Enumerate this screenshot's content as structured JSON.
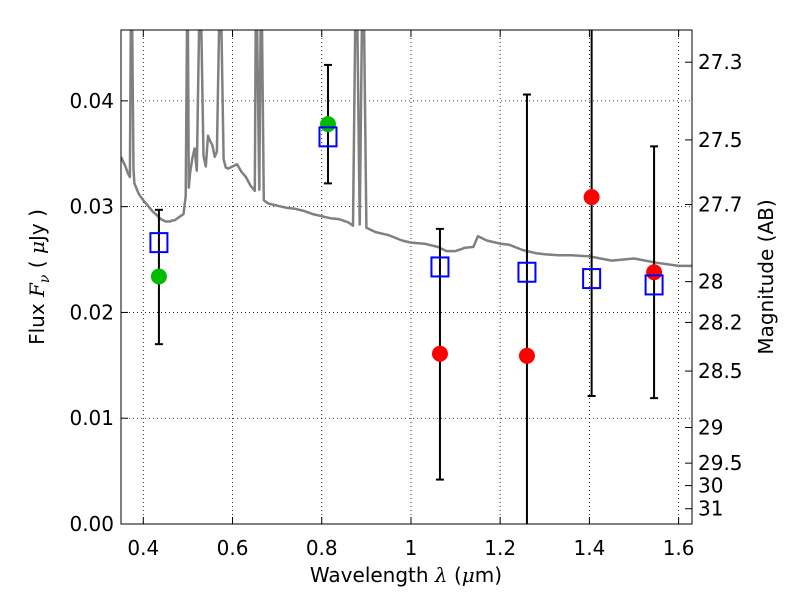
{
  "chart_data": {
    "type": "scatter",
    "xlabel": {
      "pre": "Wavelength  ",
      "symbol": "λ",
      "post": " (",
      "unit_symbol": "μ",
      "unit_post": "m)"
    },
    "ylabel": {
      "pre": "Flux  ",
      "symbol": "F",
      "sub": "ν",
      "post": "  (  ",
      "unit_symbol": "μ",
      "unit_post": "Jy )"
    },
    "y2label": "Magnitude (AB)",
    "xlim": [
      0.35,
      1.63
    ],
    "ylim": [
      0.0,
      0.0467
    ],
    "grid": true,
    "x_ticks": [
      {
        "value": 0.4,
        "label": "0.4"
      },
      {
        "value": 0.6,
        "label": "0.6"
      },
      {
        "value": 0.8,
        "label": "0.8"
      },
      {
        "value": 1.0,
        "label": "1"
      },
      {
        "value": 1.2,
        "label": "1.2"
      },
      {
        "value": 1.4,
        "label": "1.4"
      },
      {
        "value": 1.6,
        "label": "1.6"
      }
    ],
    "y_ticks": [
      {
        "value": 0.0,
        "label": "0.00"
      },
      {
        "value": 0.01,
        "label": "0.01"
      },
      {
        "value": 0.02,
        "label": "0.02"
      },
      {
        "value": 0.03,
        "label": "0.03"
      },
      {
        "value": 0.04,
        "label": "0.04"
      }
    ],
    "y2_ticks": [
      {
        "value": 27.3,
        "label": "27.3"
      },
      {
        "value": 27.5,
        "label": "27.5"
      },
      {
        "value": 27.7,
        "label": "27.7"
      },
      {
        "value": 28.0,
        "label": "28"
      },
      {
        "value": 28.2,
        "label": "28.2"
      },
      {
        "value": 28.5,
        "label": "28.5"
      },
      {
        "value": 29.0,
        "label": "29"
      },
      {
        "value": 29.5,
        "label": "29.5"
      },
      {
        "value": 30.0,
        "label": "30"
      },
      {
        "value": 31.0,
        "label": "31"
      }
    ],
    "series": [
      {
        "marker": "circle",
        "color": "#ff0000",
        "points": [
          {
            "x": 1.065,
            "y": 0.0161,
            "ylo": 0.0042,
            "yhi": 0.0279
          },
          {
            "x": 1.26,
            "y": 0.0159,
            "ylo": -0.01,
            "yhi": 0.0406
          },
          {
            "x": 1.405,
            "y": 0.0309,
            "ylo": 0.0121,
            "yhi": 0.047
          },
          {
            "x": 1.545,
            "y": 0.0238,
            "ylo": 0.0119,
            "yhi": 0.0357
          }
        ]
      },
      {
        "marker": "circle",
        "color": "#00bb00",
        "points": [
          {
            "x": 0.435,
            "y": 0.0234,
            "ylo": 0.017,
            "yhi": 0.0297
          },
          {
            "x": 0.814,
            "y": 0.0378,
            "ylo": 0.0322,
            "yhi": 0.0434
          }
        ]
      },
      {
        "marker": "open-square",
        "color": "#0000ff",
        "points": [
          {
            "x": 0.435,
            "y": 0.0266
          },
          {
            "x": 0.814,
            "y": 0.0366
          },
          {
            "x": 1.065,
            "y": 0.0243
          },
          {
            "x": 1.26,
            "y": 0.0238
          },
          {
            "x": 1.405,
            "y": 0.0232
          },
          {
            "x": 1.545,
            "y": 0.0226
          }
        ]
      }
    ],
    "template_spectrum": {
      "color": "#808080",
      "x": [
        0.35,
        0.36,
        0.365,
        0.37,
        0.372,
        0.375,
        0.378,
        0.38,
        0.39,
        0.4,
        0.41,
        0.42,
        0.43,
        0.44,
        0.45,
        0.46,
        0.465,
        0.47,
        0.48,
        0.49,
        0.495,
        0.498,
        0.5,
        0.502,
        0.505,
        0.51,
        0.515,
        0.52,
        0.525,
        0.53,
        0.535,
        0.54,
        0.545,
        0.55,
        0.555,
        0.56,
        0.565,
        0.57,
        0.575,
        0.58,
        0.585,
        0.59,
        0.6,
        0.61,
        0.62,
        0.63,
        0.64,
        0.65,
        0.652,
        0.655,
        0.66,
        0.663,
        0.666,
        0.67,
        0.68,
        0.7,
        0.72,
        0.74,
        0.76,
        0.78,
        0.8,
        0.82,
        0.84,
        0.86,
        0.87,
        0.875,
        0.88,
        0.885,
        0.89,
        0.895,
        0.9,
        0.92,
        0.95,
        0.98,
        1.0,
        1.03,
        1.06,
        1.08,
        1.1,
        1.12,
        1.14,
        1.15,
        1.17,
        1.2,
        1.22,
        1.25,
        1.28,
        1.3,
        1.33,
        1.36,
        1.4,
        1.45,
        1.5,
        1.55,
        1.6,
        1.63
      ],
      "y": [
        0.0347,
        0.0338,
        0.0332,
        0.0328,
        0.047,
        0.047,
        0.0335,
        0.0322,
        0.0312,
        0.0306,
        0.0301,
        0.0296,
        0.0292,
        0.0288,
        0.0286,
        0.0286,
        0.0287,
        0.0287,
        0.029,
        0.0293,
        0.031,
        0.047,
        0.047,
        0.0318,
        0.0332,
        0.0346,
        0.0355,
        0.0334,
        0.047,
        0.047,
        0.0348,
        0.0338,
        0.0367,
        0.0362,
        0.0358,
        0.0347,
        0.0352,
        0.047,
        0.047,
        0.0345,
        0.0337,
        0.0336,
        0.0338,
        0.034,
        0.0333,
        0.0328,
        0.032,
        0.0315,
        0.047,
        0.047,
        0.0316,
        0.047,
        0.047,
        0.0306,
        0.0303,
        0.0301,
        0.0299,
        0.0298,
        0.0296,
        0.0293,
        0.0291,
        0.0289,
        0.0288,
        0.0285,
        0.0282,
        0.047,
        0.047,
        0.0283,
        0.047,
        0.047,
        0.028,
        0.0276,
        0.0273,
        0.0268,
        0.0266,
        0.0265,
        0.0262,
        0.0258,
        0.0258,
        0.0261,
        0.0262,
        0.0272,
        0.0268,
        0.0265,
        0.0264,
        0.0259,
        0.0256,
        0.0255,
        0.0254,
        0.0254,
        0.0253,
        0.0249,
        0.0251,
        0.0247,
        0.0244,
        0.0244
      ]
    }
  }
}
